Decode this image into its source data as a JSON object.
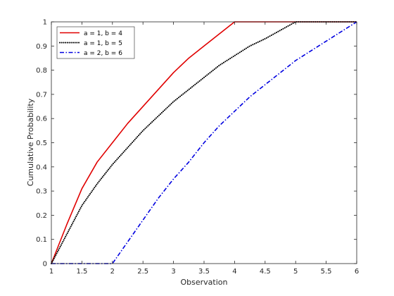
{
  "chart_data": {
    "type": "line",
    "title": "",
    "xlabel": "Observation",
    "ylabel": "Cumulative Probability",
    "xlim": [
      1,
      6
    ],
    "ylim": [
      0,
      1
    ],
    "xticks": [
      1,
      1.5,
      2,
      2.5,
      3,
      3.5,
      4,
      4.5,
      5,
      5.5,
      6
    ],
    "xtick_labels": [
      "1",
      "1.5",
      "2",
      "2.5",
      "3",
      "3.5",
      "4",
      "4.5",
      "5",
      "5.5",
      "6"
    ],
    "yticks": [
      0,
      0.1,
      0.2,
      0.3,
      0.4,
      0.5,
      0.6,
      0.7,
      0.8,
      0.9,
      1
    ],
    "ytick_labels": [
      "0",
      "0.1",
      "0.2",
      "0.3",
      "0.4",
      "0.5",
      "0.6",
      "0.7",
      "0.8",
      "0.9",
      "1"
    ],
    "grid": false,
    "legend_position": "top-left",
    "series": [
      {
        "name": "a = 1, b = 4",
        "color": "#e00000",
        "style": "solid",
        "x": [
          1,
          1.25,
          1.5,
          1.75,
          2,
          2.25,
          2.5,
          2.75,
          3,
          3.25,
          3.5,
          3.75,
          4,
          4.5,
          5,
          5.5,
          6
        ],
        "y": [
          0,
          0.16,
          0.31,
          0.42,
          0.5,
          0.58,
          0.65,
          0.72,
          0.79,
          0.85,
          0.9,
          0.95,
          1,
          1,
          1,
          1,
          1
        ]
      },
      {
        "name": "a = 1, b = 5",
        "color": "#000000",
        "style": "dotted",
        "x": [
          1,
          1.25,
          1.5,
          1.75,
          2,
          2.25,
          2.5,
          2.75,
          3,
          3.25,
          3.5,
          3.75,
          4,
          4.25,
          4.5,
          4.75,
          5,
          5.5,
          6
        ],
        "y": [
          0,
          0.12,
          0.24,
          0.33,
          0.41,
          0.48,
          0.55,
          0.61,
          0.67,
          0.72,
          0.77,
          0.82,
          0.86,
          0.9,
          0.93,
          0.965,
          1,
          1,
          1
        ]
      },
      {
        "name": "a = 2, b = 6",
        "color": "#0000e0",
        "style": "dashdot",
        "x": [
          1,
          2,
          2.25,
          2.5,
          2.75,
          3,
          3.25,
          3.5,
          3.75,
          4,
          4.25,
          4.5,
          4.75,
          5,
          5.25,
          5.5,
          5.75,
          6
        ],
        "y": [
          0,
          0,
          0.09,
          0.18,
          0.27,
          0.35,
          0.42,
          0.5,
          0.57,
          0.63,
          0.69,
          0.74,
          0.79,
          0.84,
          0.88,
          0.92,
          0.96,
          1
        ]
      }
    ]
  }
}
